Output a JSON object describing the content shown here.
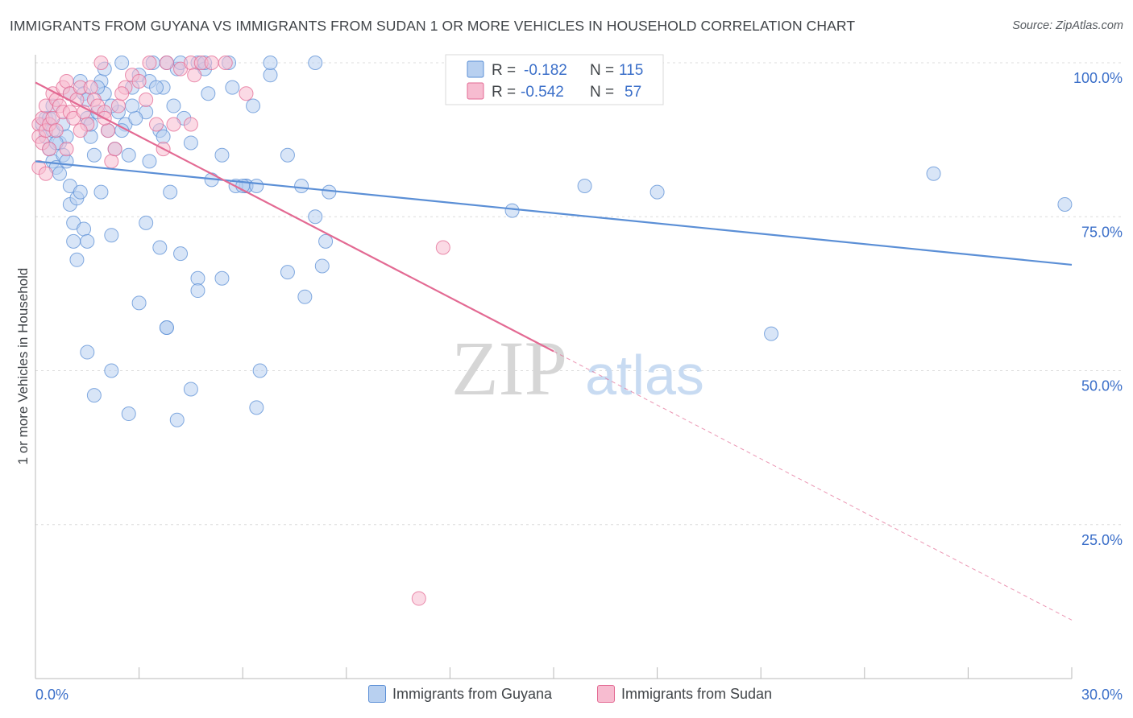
{
  "header": {
    "title": "IMMIGRANTS FROM GUYANA VS IMMIGRANTS FROM SUDAN 1 OR MORE VEHICLES IN HOUSEHOLD CORRELATION CHART",
    "source": "Source: ZipAtlas.com"
  },
  "watermark": {
    "zip": "ZIP",
    "atlas": "atlas"
  },
  "chart_data": {
    "type": "scatter",
    "title": "IMMIGRANTS FROM GUYANA VS IMMIGRANTS FROM SUDAN 1 OR MORE VEHICLES IN HOUSEHOLD CORRELATION CHART",
    "xlabel": "",
    "ylabel": "1 or more Vehicles in Household",
    "xlim": [
      0,
      30
    ],
    "ylim": [
      0,
      104
    ],
    "x_tick_labels": [
      "0.0%",
      "30.0%"
    ],
    "y_ticks": [
      25,
      50,
      75,
      100
    ],
    "y_tick_labels": [
      "25.0%",
      "50.0%",
      "75.0%",
      "100.0%"
    ],
    "grid": true,
    "legend_position": "top-center",
    "series": [
      {
        "name": "Immigrants from Guyana",
        "color": "#5b8fd6",
        "fill": "#b8d0f0",
        "R": "-0.182",
        "N": "115",
        "trend": {
          "x0": 0,
          "y0": 84.0,
          "x1": 30,
          "y1": 67.2,
          "solid_until": 30
        },
        "points": [
          [
            0.2,
            90
          ],
          [
            0.3,
            88
          ],
          [
            0.3,
            91
          ],
          [
            0.4,
            86
          ],
          [
            0.5,
            84
          ],
          [
            0.5,
            89
          ],
          [
            0.6,
            83
          ],
          [
            0.7,
            87
          ],
          [
            0.7,
            82
          ],
          [
            0.8,
            85
          ],
          [
            0.8,
            90
          ],
          [
            0.9,
            88
          ],
          [
            1.0,
            80
          ],
          [
            1.0,
            77
          ],
          [
            1.1,
            74
          ],
          [
            1.1,
            71
          ],
          [
            1.2,
            68
          ],
          [
            1.2,
            78
          ],
          [
            1.3,
            97
          ],
          [
            1.4,
            95
          ],
          [
            1.5,
            94
          ],
          [
            1.5,
            91
          ],
          [
            1.6,
            88
          ],
          [
            1.7,
            85
          ],
          [
            1.8,
            92
          ],
          [
            1.9,
            97
          ],
          [
            2.0,
            99
          ],
          [
            2.0,
            95
          ],
          [
            2.1,
            89
          ],
          [
            2.3,
            86
          ],
          [
            2.4,
            92
          ],
          [
            2.5,
            100
          ],
          [
            2.6,
            90
          ],
          [
            2.7,
            85
          ],
          [
            2.8,
            96
          ],
          [
            3.0,
            98
          ],
          [
            3.2,
            92
          ],
          [
            3.3,
            84
          ],
          [
            3.4,
            100
          ],
          [
            3.6,
            89
          ],
          [
            3.7,
            96
          ],
          [
            3.8,
            100
          ],
          [
            4.0,
            93
          ],
          [
            4.1,
            99
          ],
          [
            4.3,
            91
          ],
          [
            4.5,
            87
          ],
          [
            4.7,
            100
          ],
          [
            4.9,
            99
          ],
          [
            5.1,
            81
          ],
          [
            5.4,
            85
          ],
          [
            5.7,
            96
          ],
          [
            6.1,
            80
          ],
          [
            6.1,
            80
          ],
          [
            6.3,
            93
          ],
          [
            6.8,
            98
          ],
          [
            6.8,
            100
          ],
          [
            7.3,
            85
          ],
          [
            7.7,
            80
          ],
          [
            8.1,
            75
          ],
          [
            8.3,
            67
          ],
          [
            8.5,
            79
          ],
          [
            8.1,
            100
          ],
          [
            1.3,
            79
          ],
          [
            1.4,
            73
          ],
          [
            1.5,
            71
          ],
          [
            1.9,
            79
          ],
          [
            2.2,
            72
          ],
          [
            2.5,
            89
          ],
          [
            3.2,
            74
          ],
          [
            3.6,
            70
          ],
          [
            3.9,
            79
          ],
          [
            4.2,
            69
          ],
          [
            4.7,
            65
          ],
          [
            4.7,
            63
          ],
          [
            5.4,
            65
          ],
          [
            5.8,
            80
          ],
          [
            6.0,
            80
          ],
          [
            6.4,
            80
          ],
          [
            7.3,
            66
          ],
          [
            7.8,
            62
          ],
          [
            8.4,
            71
          ],
          [
            3.0,
            61
          ],
          [
            3.8,
            57
          ],
          [
            3.8,
            57
          ],
          [
            1.5,
            53
          ],
          [
            2.2,
            50
          ],
          [
            1.7,
            46
          ],
          [
            2.7,
            43
          ],
          [
            4.5,
            47
          ],
          [
            4.1,
            42
          ],
          [
            6.5,
            50
          ],
          [
            6.4,
            44
          ],
          [
            13.8,
            76
          ],
          [
            15.9,
            80
          ],
          [
            18.0,
            79
          ],
          [
            21.3,
            56
          ],
          [
            26.0,
            82
          ],
          [
            29.8,
            77
          ],
          [
            0.6,
            87
          ],
          [
            0.9,
            84
          ],
          [
            1.6,
            90
          ],
          [
            2.2,
            93
          ],
          [
            2.9,
            91
          ],
          [
            3.3,
            97
          ],
          [
            3.5,
            96
          ],
          [
            4.2,
            100
          ],
          [
            4.9,
            100
          ],
          [
            5.6,
            100
          ],
          [
            0.4,
            91
          ],
          [
            0.5,
            93
          ],
          [
            1.0,
            95
          ],
          [
            1.8,
            96
          ],
          [
            2.8,
            93
          ],
          [
            3.7,
            88
          ],
          [
            5.0,
            95
          ]
        ]
      },
      {
        "name": "Immigrants from Sudan",
        "color": "#e36a93",
        "fill": "#f7bcd0",
        "R": "-0.542",
        "N": "57",
        "trend": {
          "x0": 0,
          "y0": 96.8,
          "x1": 30,
          "y1": 9.5,
          "solid_until": 15.0
        },
        "points": [
          [
            0.1,
            90
          ],
          [
            0.1,
            83
          ],
          [
            0.1,
            88
          ],
          [
            0.2,
            91
          ],
          [
            0.2,
            87
          ],
          [
            0.3,
            89
          ],
          [
            0.3,
            93
          ],
          [
            0.4,
            90
          ],
          [
            0.4,
            86
          ],
          [
            0.5,
            95
          ],
          [
            0.5,
            91
          ],
          [
            0.6,
            94
          ],
          [
            0.6,
            89
          ],
          [
            0.7,
            93
          ],
          [
            0.8,
            96
          ],
          [
            0.8,
            92
          ],
          [
            0.9,
            97
          ],
          [
            1.0,
            95
          ],
          [
            1.0,
            92
          ],
          [
            1.1,
            91
          ],
          [
            1.2,
            94
          ],
          [
            1.3,
            96
          ],
          [
            1.4,
            92
          ],
          [
            1.5,
            90
          ],
          [
            1.6,
            96
          ],
          [
            1.7,
            94
          ],
          [
            1.8,
            93
          ],
          [
            1.9,
            100
          ],
          [
            2.0,
            92
          ],
          [
            2.1,
            89
          ],
          [
            2.2,
            84
          ],
          [
            2.3,
            86
          ],
          [
            2.4,
            93
          ],
          [
            2.6,
            96
          ],
          [
            2.8,
            98
          ],
          [
            3.0,
            97
          ],
          [
            3.2,
            94
          ],
          [
            3.3,
            100
          ],
          [
            3.5,
            90
          ],
          [
            3.8,
            100
          ],
          [
            4.0,
            90
          ],
          [
            4.2,
            99
          ],
          [
            4.5,
            100
          ],
          [
            4.6,
            98
          ],
          [
            4.8,
            100
          ],
          [
            5.1,
            100
          ],
          [
            5.5,
            100
          ],
          [
            6.1,
            95
          ],
          [
            3.7,
            86
          ],
          [
            4.5,
            90
          ],
          [
            0.9,
            86
          ],
          [
            1.3,
            89
          ],
          [
            2.0,
            91
          ],
          [
            2.5,
            95
          ],
          [
            11.8,
            70
          ],
          [
            11.1,
            13
          ],
          [
            0.3,
            82
          ]
        ]
      }
    ]
  },
  "legend_top": {
    "rows": [
      {
        "r_label": "R =",
        "r_value": "-0.182",
        "n_label": "N =",
        "n_value": "115"
      },
      {
        "r_label": "R =",
        "r_value": "-0.542",
        "n_label": "N =",
        "n_value": "57"
      }
    ]
  },
  "legend_bottom": {
    "items": [
      {
        "label": "Immigrants from Guyana"
      },
      {
        "label": "Immigrants from Sudan"
      }
    ]
  },
  "colors": {
    "label_blue": "#3b6fc9",
    "grid": "#dcdcdc",
    "axis": "#b8b8b8"
  }
}
